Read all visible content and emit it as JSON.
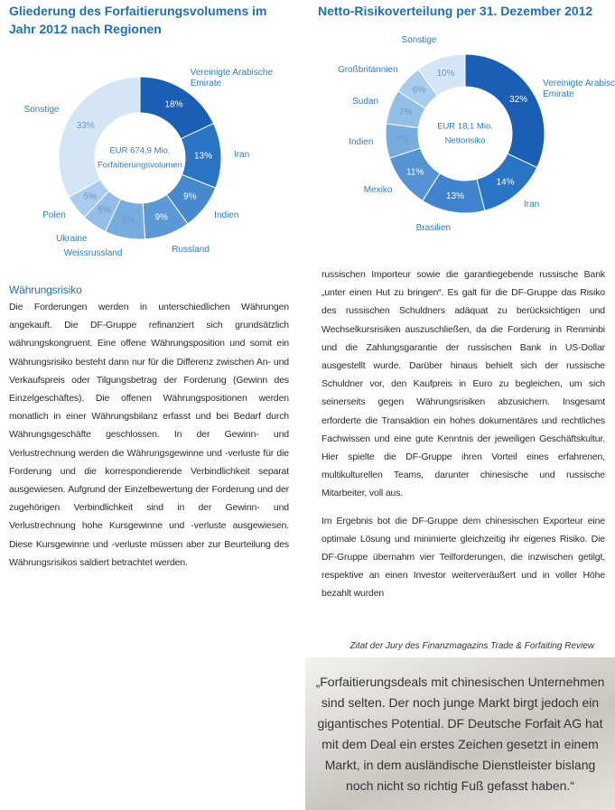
{
  "chart_data": [
    {
      "type": "pie",
      "title": "Gliederung des Forfaitierungsvolumens im Jahr 2012 nach Regionen",
      "center_labels": [
        "EUR 674,9 Mio.",
        "Forfaitierungsvolumen"
      ],
      "categories": [
        "Vereinigte Arabische Emirate",
        "Iran",
        "Indien",
        "Russland",
        "Weissrussland",
        "Ukraine",
        "Polen",
        "Sonstige"
      ],
      "values": [
        18,
        13,
        9,
        9,
        8,
        5,
        5,
        33
      ],
      "value_labels": [
        "18%",
        "13%",
        "9%",
        "9%",
        "8%",
        "5%",
        "5%",
        "33%"
      ],
      "colors": [
        "#1a5fb4",
        "#2a74c4",
        "#4689cf",
        "#5a98d6",
        "#77acdf",
        "#93bfe7",
        "#a9cdec",
        "#d4e6f6"
      ]
    },
    {
      "type": "pie",
      "title": "Netto-Risikoverteilung per 31. Dezember 2012",
      "center_labels": [
        "EUR 18,1 Mio.",
        "Nettorisiko"
      ],
      "categories": [
        "Vereinigte Arabische Emirate",
        "Iran",
        "Brasilien",
        "Mexiko",
        "Indien",
        "Sudan",
        "Großbritannien",
        "Sonstige"
      ],
      "values": [
        32,
        14,
        13,
        11,
        7,
        7,
        6,
        10
      ],
      "value_labels": [
        "32%",
        "14%",
        "13%",
        "11%",
        "7%",
        "7%",
        "6%",
        "10%"
      ],
      "colors": [
        "#1a5fb4",
        "#2a74c4",
        "#3f84cc",
        "#5594d4",
        "#77acdf",
        "#93bfe7",
        "#a9cdec",
        "#d4e6f6"
      ]
    }
  ],
  "left": {
    "heading": "Währungsrisiko",
    "paragraph": "Die Forderungen werden in unterschiedlichen Währungen angekauft. Die DF-Gruppe refinanziert sich grundsätzlich währungskongruent. Eine offene Währungsposition und somit ein Währungsrisiko besteht dann nur für die Differenz zwischen An- und Verkaufspreis oder Tilgungsbetrag der Forderung (Gewinn des Einzelgeschäftes). Die offenen Währungspositionen werden monatlich in einer Währungsbilanz erfasst und bei Bedarf durch Währungsgeschäfte geschlossen. In der Gewinn- und Verlustrechnung werden die Währungsgewinne und -verluste für die Forderung und die korrespondierende Verbindlichkeit separat ausgewiesen. Aufgrund der Einzelbewertung der Forderung und der zugehörigen Verbindlichkeit sind in der Gewinn- und Verlustrechnung hohe Kursgewinne und -verluste ausgewiesen. Diese Kursgewinne und -verluste müssen aber zur Beurteilung des Währungsrisikos saldiert betrachtet werden."
  },
  "right": {
    "paragraphs": [
      "russischen Importeur sowie die garantiegebende russische Bank „unter einen Hut zu bringen“. Es galt für die DF-Gruppe das Risiko des russischen Schuldners adäquat zu berücksichtigen und Wechselkursrisiken auszuschließen, da die Forderung in Renminbi und die Zahlungsgarantie der russischen Bank in US-Dollar ausgestellt wurde. Darüber hinaus behielt sich der russische Schuldner vor, den Kaufpreis in Euro zu begleichen, um sich seinerseits gegen Währungsrisiken abzusichern. Insgesamt erforderte die Transaktion ein hohes dokumentäres und rechtliches Fachwissen und eine gute Kenntnis der jeweiligen Geschäftskultur. Hier spielte die DF-Gruppe ihren Vorteil eines erfahrenen, multikulturellen Teams, darunter chinesische und russische Mitarbeiter, voll aus.",
      "Im Ergebnis bot die DF-Gruppe dem chinesischen Exporteur eine optimale Lösung und minimierte gleichzeitig ihr eigenes Risiko. Die DF-Gruppe übernahm vier Teilforderungen, die inzwischen getilgt, respektive an einen Investor weiterveräußert und in voller Höhe bezahlt wurden"
    ]
  },
  "quote": {
    "caption": "Zitat der Jury des Finanzmagazins Trade & Forfaiting Review",
    "text": "„Forfaitierungsdeals mit chinesischen Unternehmen sind selten. Der noch junge Markt birgt jedoch ein gigantisches Potential. DF Deutsche Forfait AG hat mit dem Deal ein erstes Zeichen gesetzt in einem Markt, in dem ausländische Dienstleister bislang noch nicht so richtig Fuß gefasst haben.“"
  }
}
